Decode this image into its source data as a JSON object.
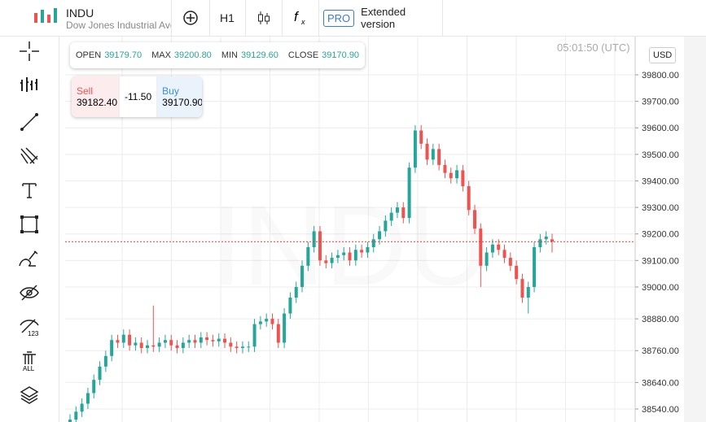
{
  "header": {
    "symbol": "INDU",
    "description": "Dow Jones Industrial Ave",
    "timeframe": "H1",
    "pro": "PRO",
    "extended": "Extended version"
  },
  "ohlc": {
    "open_label": "OPEN",
    "open": "39179.70",
    "max_label": "MAX",
    "max": "39200.80",
    "min_label": "MIN",
    "min": "39129.60",
    "close_label": "CLOSE",
    "close": "39170.90"
  },
  "trade": {
    "sell_label": "Sell",
    "sell": "39182.40",
    "spread": "-11.50",
    "buy_label": "Buy",
    "buy": "39170.90"
  },
  "clock": "05:01:50 (UTC)",
  "currency": "USD",
  "chart_data": {
    "type": "candlestick",
    "watermark": "INDU",
    "up_color": "#26a69a",
    "down_color": "#ef5350",
    "price_line": 39170.9,
    "ylim": [
      38491,
      39944
    ],
    "yticks": [
      {
        "value": 38540,
        "label": "38540.00"
      },
      {
        "value": 38640,
        "label": "38640.00"
      },
      {
        "value": 38760,
        "label": "38760.00"
      },
      {
        "value": 38880,
        "label": "38880.00"
      },
      {
        "value": 39000,
        "label": "39000.00"
      },
      {
        "value": 39100,
        "label": "39100.00"
      },
      {
        "value": 39200,
        "label": "39200.00"
      },
      {
        "value": 39300,
        "label": "39300.00"
      },
      {
        "value": 39400,
        "label": "39400.00"
      },
      {
        "value": 39500,
        "label": "39500.00"
      },
      {
        "value": 39600,
        "label": "39600.00"
      },
      {
        "value": 39700,
        "label": "39700.00"
      },
      {
        "value": 39800,
        "label": "39800.00"
      }
    ],
    "grid": true,
    "open": [
      38480,
      38500,
      38530,
      38560,
      38600,
      38650,
      38700,
      38740,
      38800,
      38790,
      38820,
      38780,
      38790,
      38770,
      38780,
      38775,
      38790,
      38800,
      38780,
      38770,
      38790,
      38800,
      38790,
      38810,
      38800,
      38795,
      38805,
      38790,
      38775,
      38770,
      38775,
      38775,
      38860,
      38870,
      38880,
      38860,
      38790,
      38900,
      38960,
      39000,
      39080,
      39150,
      39210,
      39100,
      39090,
      39110,
      39120,
      39130,
      39100,
      39140,
      39130,
      39150,
      39180,
      39210,
      39250,
      39280,
      39300,
      39260,
      39450,
      39590,
      39540,
      39480,
      39520,
      39460,
      39430,
      39410,
      39440,
      39380,
      39290,
      39220,
      39080,
      39130,
      39160,
      39140,
      39110,
      39080,
      39030,
      38960,
      39000,
      39150,
      39180,
      39179.7
    ],
    "high": [
      38520,
      38550,
      38580,
      38620,
      38670,
      38720,
      38760,
      38820,
      38820,
      38840,
      38840,
      38810,
      38810,
      38800,
      38930,
      38810,
      38820,
      38820,
      38800,
      38810,
      38820,
      38820,
      38830,
      38830,
      38820,
      38825,
      38825,
      38810,
      38795,
      38795,
      38795,
      38880,
      38890,
      38900,
      38900,
      38880,
      38920,
      38980,
      39020,
      39100,
      39170,
      39230,
      39230,
      39120,
      39130,
      39140,
      39150,
      39150,
      39160,
      39160,
      39170,
      39200,
      39230,
      39270,
      39300,
      39320,
      39320,
      39470,
      39610,
      39610,
      39560,
      39540,
      39540,
      39480,
      39450,
      39460,
      39460,
      39400,
      39310,
      39240,
      39150,
      39180,
      39180,
      39160,
      39130,
      39100,
      39050,
      39020,
      39170,
      39200,
      39210,
      39200.8
    ],
    "low": [
      38460,
      38480,
      38510,
      38540,
      38580,
      38630,
      38680,
      38720,
      38770,
      38770,
      38760,
      38760,
      38750,
      38750,
      38755,
      38755,
      38770,
      38760,
      38750,
      38750,
      38770,
      38770,
      38770,
      38780,
      38775,
      38775,
      38770,
      38755,
      38750,
      38750,
      38755,
      38755,
      38840,
      38850,
      38840,
      38770,
      38770,
      38880,
      38940,
      38980,
      39060,
      39130,
      39080,
      39070,
      39070,
      39090,
      39100,
      39080,
      39080,
      39110,
      39110,
      39130,
      39160,
      39190,
      39230,
      39260,
      39240,
      39240,
      39430,
      39520,
      39460,
      39460,
      39440,
      39410,
      39390,
      39390,
      39360,
      39270,
      39200,
      39000,
      39060,
      39110,
      39120,
      39090,
      39060,
      39010,
      38940,
      38900,
      38980,
      39130,
      39160,
      39129.6
    ],
    "close": [
      38500,
      38530,
      38560,
      38600,
      38650,
      38700,
      38740,
      38800,
      38790,
      38820,
      38780,
      38790,
      38770,
      38780,
      38775,
      38790,
      38800,
      38780,
      38770,
      38790,
      38800,
      38790,
      38810,
      38800,
      38795,
      38805,
      38790,
      38775,
      38770,
      38775,
      38775,
      38860,
      38870,
      38880,
      38860,
      38790,
      38900,
      38960,
      39000,
      39080,
      39150,
      39210,
      39100,
      39090,
      39110,
      39120,
      39130,
      39100,
      39140,
      39130,
      39150,
      39180,
      39210,
      39250,
      39280,
      39300,
      39260,
      39450,
      39590,
      39540,
      39480,
      39520,
      39460,
      39430,
      39410,
      39440,
      39380,
      39290,
      39220,
      39080,
      39130,
      39160,
      39140,
      39110,
      39080,
      39030,
      38960,
      39000,
      39150,
      39180,
      39190,
      39170.9
    ]
  }
}
